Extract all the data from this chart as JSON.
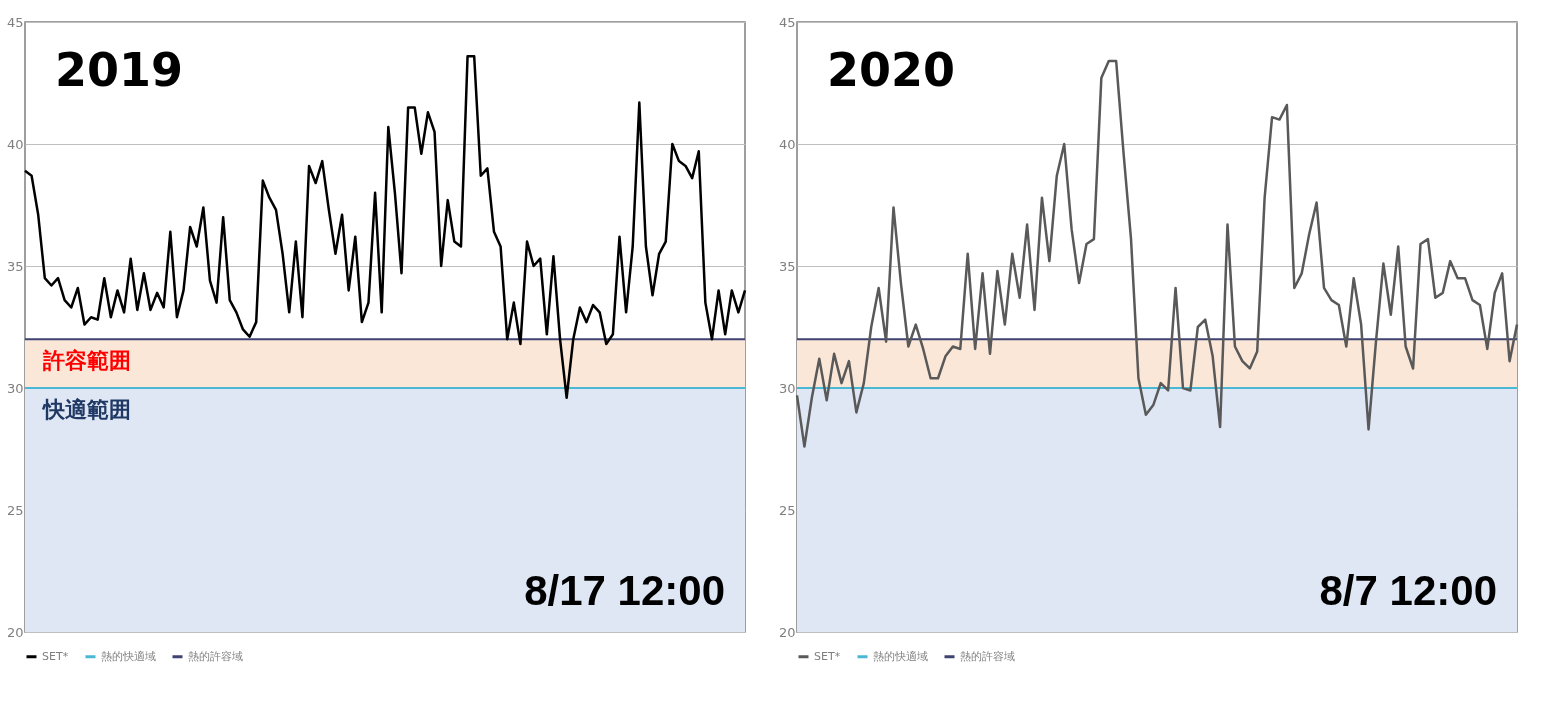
{
  "chart_data": [
    {
      "type": "line",
      "categories": [
        null,
        null,
        null,
        null,
        null,
        null,
        null,
        null,
        null,
        null,
        null,
        null,
        null,
        null,
        null,
        null,
        null,
        null,
        null,
        null,
        null,
        null,
        null,
        null,
        null,
        null,
        null,
        null,
        null,
        null,
        null,
        null,
        null,
        null,
        null,
        null,
        null,
        null,
        null,
        null,
        null,
        null,
        null,
        null,
        null,
        null,
        null,
        null,
        null,
        null,
        null,
        null,
        null,
        null,
        null,
        null,
        null,
        null,
        null,
        null,
        null,
        null,
        null,
        null,
        null,
        null,
        null,
        null,
        null,
        null,
        null,
        null,
        null,
        null,
        null,
        null,
        null,
        null,
        null,
        null,
        null,
        null,
        null,
        null,
        null,
        null,
        null,
        null,
        null,
        null,
        null,
        null,
        null,
        null,
        null,
        null,
        null,
        null,
        null,
        null,
        null,
        null,
        null,
        null,
        null,
        null,
        null,
        null,
        null,
        null
      ],
      "series": [
        {
          "name": "SET*",
          "color": "#000000",
          "values": [
            38.9,
            38.7,
            37.1,
            34.5,
            34.2,
            34.5,
            33.6,
            33.3,
            34.1,
            32.6,
            32.9,
            32.8,
            34.5,
            32.9,
            34.0,
            33.1,
            35.3,
            33.2,
            34.7,
            33.2,
            33.9,
            33.3,
            36.4,
            32.9,
            34.0,
            36.6,
            35.8,
            37.4,
            34.4,
            33.5,
            37.0,
            33.6,
            33.1,
            32.4,
            32.1,
            32.7,
            38.5,
            37.8,
            37.3,
            35.5,
            33.1,
            36.0,
            32.9,
            39.1,
            38.4,
            39.3,
            37.3,
            35.5,
            37.1,
            34.0,
            36.2,
            32.7,
            33.5,
            38.0,
            33.1,
            40.7,
            38.0,
            34.7,
            41.5,
            41.5,
            39.6,
            41.3,
            40.5,
            35.0,
            37.7,
            36.0,
            35.8,
            43.6,
            43.6,
            38.7,
            39.0,
            36.4,
            35.8,
            32.0,
            33.5,
            31.8,
            36.0,
            35.0,
            35.3,
            32.2,
            35.4,
            32.0,
            29.6,
            32.0,
            33.3,
            32.7,
            33.4,
            33.1,
            31.8,
            32.2,
            36.2,
            33.1,
            35.8,
            41.7,
            35.8,
            33.8,
            35.5,
            36.0,
            40.0,
            39.3,
            39.1,
            38.6,
            39.7,
            33.5,
            32.0,
            34.0,
            32.2,
            34.0,
            33.1,
            34.0
          ]
        }
      ],
      "ylim": [
        20,
        45
      ],
      "yticks": [
        20,
        25,
        30,
        35,
        40,
        45
      ],
      "grid": "y",
      "legend": "bottom",
      "ref_lines": [
        {
          "axis": "y",
          "value": 30,
          "label": "熱的快適域",
          "color": "#4bb8d3"
        },
        {
          "axis": "y",
          "value": 32,
          "label": "熱的許容域",
          "color": "#3f4372"
        }
      ],
      "bands": [
        {
          "axis": "y",
          "from": 30,
          "to": 32,
          "label": "許容範囲",
          "color": "#fbe7d8"
        },
        {
          "axis": "y",
          "from": 20,
          "to": 30,
          "label": "快適範囲",
          "color": "#dfe7f4"
        }
      ],
      "annotations": [
        "2019",
        "8/17  12:00"
      ]
    },
    {
      "type": "line",
      "categories": [
        null,
        null,
        null,
        null,
        null,
        null,
        null,
        null,
        null,
        null,
        null,
        null,
        null,
        null,
        null,
        null,
        null,
        null,
        null,
        null,
        null,
        null,
        null,
        null,
        null,
        null,
        null,
        null,
        null,
        null,
        null,
        null,
        null,
        null,
        null,
        null,
        null,
        null,
        null,
        null,
        null,
        null,
        null,
        null,
        null,
        null,
        null,
        null,
        null,
        null,
        null,
        null,
        null,
        null,
        null,
        null,
        null,
        null,
        null,
        null,
        null,
        null,
        null,
        null,
        null,
        null,
        null,
        null,
        null,
        null,
        null,
        null,
        null,
        null,
        null,
        null,
        null,
        null,
        null,
        null,
        null,
        null,
        null,
        null,
        null,
        null,
        null,
        null,
        null,
        null,
        null,
        null,
        null,
        null,
        null,
        null,
        null,
        null
      ],
      "series": [
        {
          "name": "SET*",
          "color": "#595959",
          "values": [
            29.7,
            27.6,
            29.6,
            31.2,
            29.5,
            31.4,
            30.2,
            31.1,
            29.0,
            30.2,
            32.5,
            34.1,
            31.9,
            37.4,
            34.3,
            31.7,
            32.6,
            31.6,
            30.4,
            30.4,
            31.3,
            31.7,
            31.6,
            35.5,
            31.6,
            34.7,
            31.4,
            34.8,
            32.6,
            35.5,
            33.7,
            36.7,
            33.2,
            37.8,
            35.2,
            38.7,
            40.0,
            36.5,
            34.3,
            35.9,
            36.1,
            42.7,
            43.4,
            43.4,
            39.6,
            36.1,
            30.4,
            28.9,
            29.3,
            30.2,
            29.9,
            34.1,
            30.0,
            29.9,
            32.5,
            32.8,
            31.3,
            28.4,
            36.7,
            31.7,
            31.1,
            30.8,
            31.5,
            37.8,
            41.1,
            41.0,
            41.6,
            34.1,
            34.7,
            36.3,
            37.6,
            34.1,
            33.6,
            33.4,
            31.7,
            34.5,
            32.6,
            28.3,
            31.9,
            35.1,
            33.0,
            35.8,
            31.7,
            30.8,
            35.9,
            36.1,
            33.7,
            33.9,
            35.2,
            34.5,
            34.5,
            33.6,
            33.4,
            31.6,
            33.9,
            34.7,
            31.1,
            32.6
          ]
        }
      ],
      "ylim": [
        20,
        45
      ],
      "yticks": [
        20,
        25,
        30,
        35,
        40,
        45
      ],
      "grid": "y",
      "legend": "bottom",
      "ref_lines": [
        {
          "axis": "y",
          "value": 30,
          "label": "熱的快適域",
          "color": "#4bb8d3"
        },
        {
          "axis": "y",
          "value": 32,
          "label": "熱的許容域",
          "color": "#3f4372"
        }
      ],
      "bands": [
        {
          "axis": "y",
          "from": 30,
          "to": 32,
          "color": "#fbe7d8"
        },
        {
          "axis": "y",
          "from": 20,
          "to": 30,
          "color": "#dfe7f4"
        }
      ],
      "annotations": [
        "2020",
        "8/7  12:00"
      ]
    }
  ]
}
